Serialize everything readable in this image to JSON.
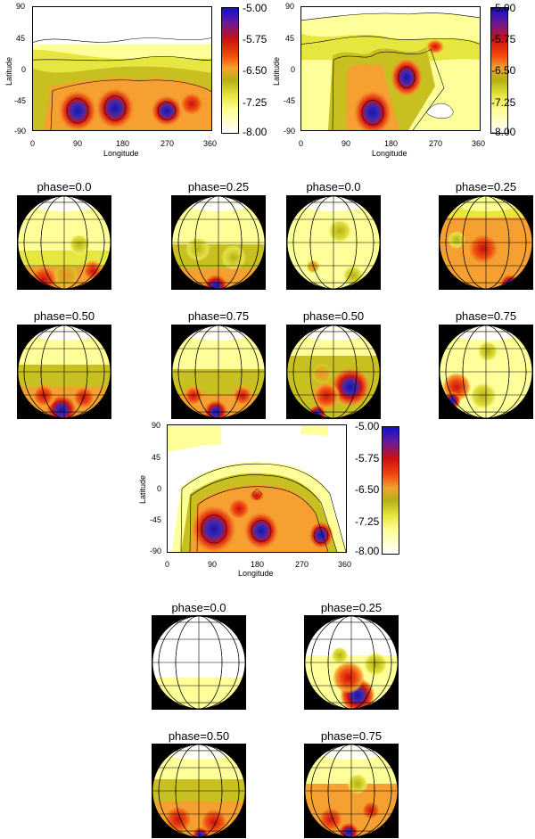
{
  "axes": {
    "ylabel": "Latitude",
    "xlabel": "Longitude",
    "yticks": [
      "90",
      "45",
      "0",
      "-45",
      "-90"
    ],
    "xticks": [
      "0",
      "90",
      "180",
      "270",
      "360"
    ]
  },
  "colorbar": {
    "labels": [
      "-5.00",
      "-5.75",
      "-6.50",
      "-7.25",
      "-8.00"
    ],
    "colors": [
      "#1a1acc",
      "#7a1a9a",
      "#cc1010",
      "#f04a0a",
      "#f5a030",
      "#b6b012",
      "#e6e640",
      "#ffff99",
      "#ffffff"
    ]
  },
  "maps": [
    {
      "id": "map-top-left"
    },
    {
      "id": "map-top-right"
    },
    {
      "id": "map-middle"
    }
  ],
  "globes": [
    {
      "label": "phase=0.0"
    },
    {
      "label": "phase=0.25"
    },
    {
      "label": "phase=0.0"
    },
    {
      "label": "phase=0.25"
    },
    {
      "label": "phase=0.50"
    },
    {
      "label": "phase=0.75"
    },
    {
      "label": "phase=0.50"
    },
    {
      "label": "phase=0.75"
    },
    {
      "label": "phase=0.0"
    },
    {
      "label": "phase=0.25"
    },
    {
      "label": "phase=0.50"
    },
    {
      "label": "phase=0.75"
    }
  ]
}
